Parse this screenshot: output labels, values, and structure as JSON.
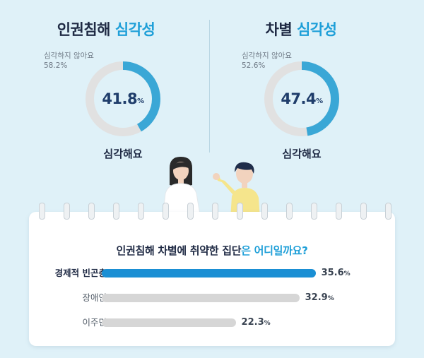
{
  "panels": [
    {
      "title_main": "인권침해",
      "title_highlight": "심각성",
      "not_serious_label": "심각하지 않아요",
      "not_serious_pct": "58.2",
      "serious_pct": "41.8",
      "serious_label": "심각해요"
    },
    {
      "title_main": "차별",
      "title_highlight": "심각성",
      "not_serious_label": "심각하지 않아요",
      "not_serious_pct": "52.6",
      "serious_pct": "47.4",
      "serious_label": "심각해요"
    }
  ],
  "question": {
    "main": "인권침해 차별에 취약한 집단",
    "highlight": "은 어디일까요?"
  },
  "pct_unit": "%",
  "colors": {
    "accent": "#1e9fd8",
    "donut_serious": "#3aa7d6",
    "donut_rest": "#dcdcdc",
    "bar_primary": "#1a8fd4",
    "bar_secondary": "#d6d6d6",
    "background": "#dff1f8"
  },
  "chart_data": [
    {
      "type": "pie",
      "title": "인권침해 심각성",
      "labels": [
        "심각해요",
        "심각하지 않아요"
      ],
      "values": [
        41.8,
        58.2
      ]
    },
    {
      "type": "pie",
      "title": "차별 심각성",
      "labels": [
        "심각해요",
        "심각하지 않아요"
      ],
      "values": [
        47.4,
        52.6
      ]
    },
    {
      "type": "bar",
      "orientation": "horizontal",
      "title": "인권침해 차별에 취약한 집단은 어디일까요?",
      "categories": [
        "경제적 빈곤층",
        "장애인",
        "이주민"
      ],
      "values": [
        35.6,
        32.9,
        22.3
      ],
      "unit": "%",
      "xlim": [
        0,
        40
      ]
    }
  ]
}
